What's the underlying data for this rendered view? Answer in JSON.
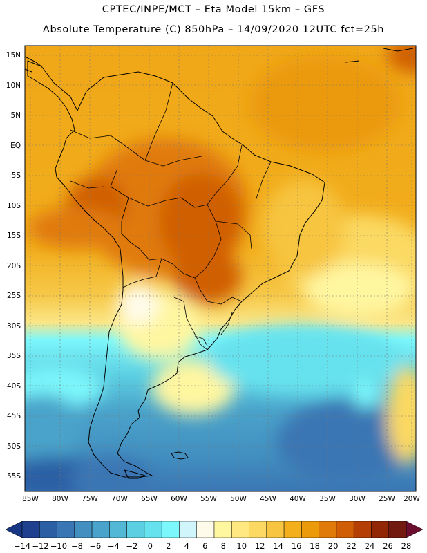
{
  "header": {
    "line1": "CPTEC/INPE/MCT –  Eta Model 15km – GFS",
    "line2": "Absolute Temperature (C) 850hPa – 14/09/2020 12UTC fct=25h"
  },
  "map": {
    "latitude_labels": [
      "15N",
      "10N",
      "5N",
      "EQ",
      "5S",
      "10S",
      "15S",
      "20S",
      "25S",
      "30S",
      "35S",
      "40S",
      "45S",
      "50S",
      "55S"
    ],
    "longitude_labels": [
      "85W",
      "80W",
      "75W",
      "70W",
      "65W",
      "60W",
      "55W",
      "50W",
      "45W",
      "40W",
      "35W",
      "30W",
      "25W",
      "20W"
    ]
  },
  "colorbar": {
    "labels": [
      "-14",
      "-12",
      "-10",
      "-8",
      "-6",
      "-4",
      "-2",
      "0",
      "2",
      "4",
      "6",
      "8",
      "10",
      "12",
      "14",
      "16",
      "18",
      "20",
      "22",
      "24",
      "26",
      "28"
    ],
    "colors": [
      "#1f3f8f",
      "#2c5ea4",
      "#3a76b4",
      "#428fc0",
      "#4aa3ca",
      "#52b8d6",
      "#5ccfe2",
      "#66e2ee",
      "#7cf7fb",
      "#d0f6fb",
      "#fffbea",
      "#fff6a0",
      "#ffe882",
      "#fbd962",
      "#f7c540",
      "#f3b01c",
      "#eb9a0a",
      "#e07a08",
      "#d05e06",
      "#b53e04",
      "#922706",
      "#731a10"
    ],
    "low_end_color": "#173683",
    "high_end_color": "#6b0d2e"
  }
}
